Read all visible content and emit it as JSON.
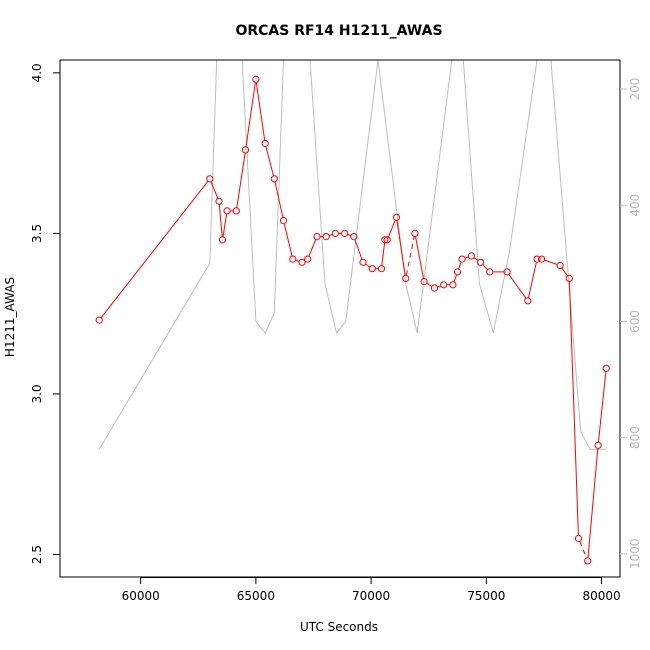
{
  "chart_data": {
    "type": "line",
    "title": "ORCAS RF14 H1211_AWAS",
    "xlabel": "UTC Seconds",
    "ylabel": "H1211_AWAS",
    "xlim": [
      56500,
      80800
    ],
    "ylim": [
      2.43,
      4.04
    ],
    "xticks": [
      60000,
      65000,
      70000,
      75000,
      80000
    ],
    "yticks": [
      2.5,
      3.0,
      3.5,
      4.0
    ],
    "y2lim": [
      1040,
      150
    ],
    "y2ticks": [
      200,
      400,
      600,
      800,
      1000
    ],
    "colors": {
      "series": "#ff0000",
      "secondary": "#bebebe",
      "axes": "#000000"
    },
    "series": [
      {
        "color": "#ff0000",
        "markers": "open-circle",
        "line_breaks_after_index": [
          4,
          25,
          38,
          42,
          45
        ],
        "x": [
          58200,
          63000,
          63400,
          63550,
          63750,
          64150,
          64550,
          65000,
          65400,
          65800,
          66200,
          66600,
          67000,
          67250,
          67650,
          68050,
          68450,
          68850,
          69250,
          69650,
          70050,
          70450,
          70600,
          70700,
          71100,
          71500,
          71900,
          72300,
          72750,
          73150,
          73550,
          73750,
          73950,
          74350,
          74750,
          75150,
          75900,
          76800,
          77200,
          77400,
          78200,
          78600,
          79000,
          79400,
          79850,
          80200
        ],
        "y": [
          3.23,
          3.67,
          3.6,
          3.48,
          3.57,
          3.57,
          3.76,
          3.98,
          3.78,
          3.67,
          3.54,
          3.42,
          3.41,
          3.42,
          3.49,
          3.49,
          3.5,
          3.5,
          3.49,
          3.41,
          3.39,
          3.39,
          3.48,
          3.48,
          3.55,
          3.36,
          3.5,
          3.35,
          3.33,
          3.34,
          3.34,
          3.38,
          3.42,
          3.43,
          3.41,
          3.38,
          3.38,
          3.29,
          3.42,
          3.42,
          3.4,
          3.36,
          2.55,
          2.48,
          2.84,
          3.08
        ]
      },
      {
        "color": "#bebebe",
        "axis": "right",
        "x": [
          58200,
          63000,
          63300,
          64400,
          65000,
          65400,
          65800,
          66200,
          66700,
          67350,
          68000,
          68500,
          68900,
          70300,
          71500,
          72000,
          73500,
          74000,
          74700,
          75300,
          76000,
          77200,
          77800,
          79100,
          79500,
          80200
        ],
        "y": [
          820,
          500,
          150,
          150,
          600,
          620,
          585,
          150,
          150,
          150,
          535,
          620,
          600,
          150,
          535,
          620,
          150,
          150,
          535,
          620,
          480,
          150,
          150,
          790,
          820,
          820
        ]
      }
    ]
  }
}
